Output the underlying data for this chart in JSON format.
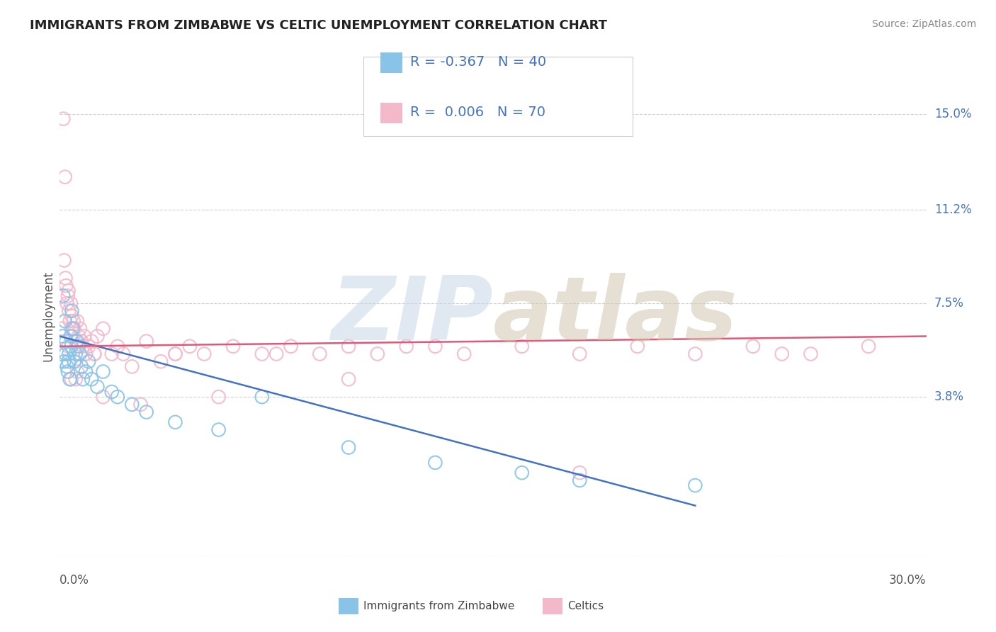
{
  "title": "IMMIGRANTS FROM ZIMBABWE VS CELTIC UNEMPLOYMENT CORRELATION CHART",
  "source": "Source: ZipAtlas.com",
  "ylabel": "Unemployment",
  "x_min": 0.0,
  "x_max": 30.0,
  "y_min": -2.5,
  "y_max": 16.5,
  "series1_label": "Immigrants from Zimbabwe",
  "series1_color": "#89c4e8",
  "series1_edge": "#89c4e8",
  "series1_R": "-0.367",
  "series1_N": "40",
  "series2_label": "Celtics",
  "series2_color": "#f4b8cb",
  "series2_edge": "#f4b8cb",
  "series2_R": "0.006",
  "series2_N": "70",
  "legend_R_color": "#4472c4",
  "trendline1_color": "#4472c4",
  "trendline2_color": "#e05878",
  "scatter1_x": [
    0.05,
    0.1,
    0.12,
    0.15,
    0.18,
    0.2,
    0.22,
    0.25,
    0.28,
    0.3,
    0.32,
    0.35,
    0.38,
    0.4,
    0.42,
    0.45,
    0.5,
    0.55,
    0.6,
    0.65,
    0.7,
    0.75,
    0.8,
    0.9,
    1.0,
    1.1,
    1.3,
    1.5,
    1.8,
    2.0,
    2.5,
    3.0,
    4.0,
    5.5,
    7.0,
    10.0,
    13.0,
    16.0,
    18.0,
    22.0
  ],
  "scatter1_y": [
    5.5,
    6.2,
    7.8,
    5.2,
    6.8,
    5.5,
    6.0,
    5.0,
    4.8,
    5.2,
    5.5,
    4.5,
    6.2,
    5.8,
    7.2,
    6.5,
    5.2,
    5.5,
    6.0,
    5.8,
    5.5,
    5.0,
    4.5,
    4.8,
    5.2,
    4.5,
    4.2,
    4.8,
    4.0,
    3.8,
    3.5,
    3.2,
    2.8,
    2.5,
    3.8,
    1.8,
    1.2,
    0.8,
    0.5,
    0.3
  ],
  "scatter2_x": [
    0.08,
    0.12,
    0.15,
    0.18,
    0.2,
    0.22,
    0.25,
    0.28,
    0.3,
    0.32,
    0.35,
    0.38,
    0.4,
    0.42,
    0.45,
    0.48,
    0.5,
    0.55,
    0.6,
    0.65,
    0.7,
    0.75,
    0.8,
    0.85,
    0.9,
    1.0,
    1.1,
    1.2,
    1.3,
    1.5,
    1.8,
    2.0,
    2.2,
    2.5,
    3.0,
    3.5,
    4.0,
    4.5,
    5.0,
    6.0,
    7.0,
    8.0,
    9.0,
    10.0,
    11.0,
    12.0,
    14.0,
    16.0,
    18.0,
    20.0,
    22.0,
    24.0,
    26.0,
    28.0,
    0.4,
    0.5,
    0.6,
    0.9,
    1.5,
    2.8,
    4.0,
    5.5,
    7.5,
    10.0,
    13.0,
    18.0,
    25.0,
    0.3,
    0.55,
    1.2
  ],
  "scatter2_y": [
    6.5,
    14.8,
    9.2,
    12.5,
    8.5,
    8.2,
    7.5,
    7.8,
    8.0,
    7.2,
    6.8,
    7.5,
    6.5,
    7.0,
    6.2,
    6.8,
    6.5,
    6.0,
    6.8,
    6.2,
    6.5,
    6.0,
    5.8,
    6.2,
    5.5,
    5.8,
    6.0,
    5.5,
    6.2,
    6.5,
    5.5,
    5.8,
    5.5,
    5.0,
    6.0,
    5.2,
    5.5,
    5.8,
    5.5,
    5.8,
    5.5,
    5.8,
    5.5,
    5.8,
    5.5,
    5.8,
    5.5,
    5.8,
    5.5,
    5.8,
    5.5,
    5.8,
    5.5,
    5.8,
    4.5,
    5.2,
    4.8,
    5.5,
    3.8,
    3.5,
    5.5,
    3.8,
    5.5,
    4.5,
    5.8,
    0.8,
    5.5,
    5.8,
    4.5,
    5.5
  ],
  "trendline1_x": [
    0.0,
    22.0
  ],
  "trendline1_y": [
    6.2,
    -0.5
  ],
  "trendline2_x": [
    0.0,
    30.0
  ],
  "trendline2_y": [
    5.8,
    6.2
  ],
  "watermark_zip": "ZIP",
  "watermark_atlas": "atlas",
  "background_color": "#ffffff",
  "grid_color": "#d0d0d0",
  "ytick_values": [
    3.8,
    7.5,
    11.2,
    15.0
  ],
  "ytick_labels": [
    "3.8%",
    "7.5%",
    "11.2%",
    "15.0%"
  ],
  "xtick_label_left": "0.0%",
  "xtick_label_right": "30.0%"
}
